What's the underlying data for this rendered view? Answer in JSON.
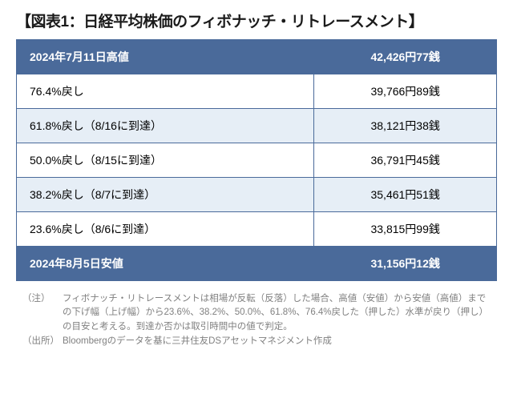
{
  "title": "【図表1：日経平均株価のフィボナッチ・リトレースメント】",
  "table": {
    "columns": [
      "label",
      "value"
    ],
    "header_bg": "#4a6a9a",
    "header_fg": "#ffffff",
    "alt_bg": "#e6eef6",
    "border_color": "#4a6a9a",
    "rows": [
      {
        "label": "2024年7月11日高値",
        "value": "42,426円77銭",
        "style": "hdr"
      },
      {
        "label": "76.4%戻し",
        "value": "39,766円89銭",
        "style": "plain"
      },
      {
        "label": "61.8%戻し（8/16に到達）",
        "value": "38,121円38銭",
        "style": "alt"
      },
      {
        "label": "50.0%戻し（8/15に到達）",
        "value": "36,791円45銭",
        "style": "plain"
      },
      {
        "label": "38.2%戻し（8/7に到達）",
        "value": "35,461円51銭",
        "style": "alt"
      },
      {
        "label": "23.6%戻し（8/6に到達）",
        "value": "33,815円99銭",
        "style": "plain"
      },
      {
        "label": "2024年8月5日安値",
        "value": "31,156円12銭",
        "style": "hdr"
      }
    ]
  },
  "footnotes": {
    "note_label": "（注）",
    "note_text": "フィボナッチ・リトレースメントは相場が反転（反落）した場合、高値（安値）から安値（高値）までの下げ幅（上げ幅）から23.6%、38.2%、50.0%、61.8%、76.4%戻した（押した）水準が戻り（押し）の目安と考える。到達か否かは取引時間中の値で判定。",
    "source_label": "（出所）",
    "source_text": "Bloombergのデータを基に三井住友DSアセットマネジメント作成"
  },
  "colors": {
    "title": "#1a1a1a",
    "footnote": "#808080",
    "background": "#ffffff"
  },
  "typography": {
    "title_fontsize": 19,
    "table_fontsize": 14,
    "footnote_fontsize": 11.5
  }
}
